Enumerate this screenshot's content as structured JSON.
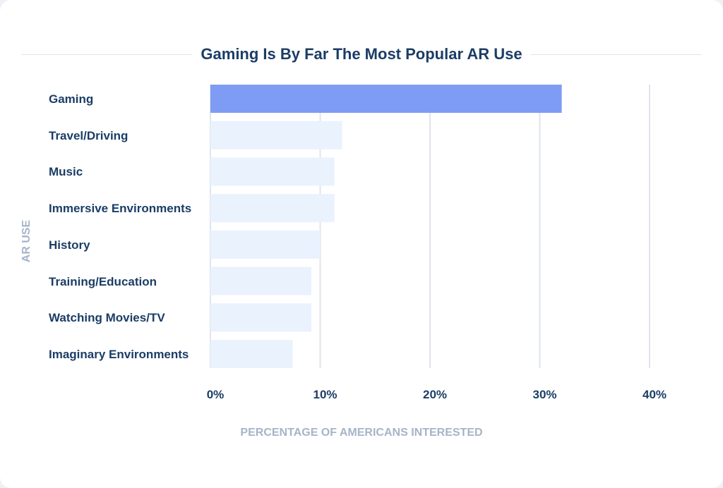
{
  "chart_data": {
    "type": "bar",
    "orientation": "horizontal",
    "title": "Gaming Is By Far The Most Popular AR Use",
    "xlabel": "PERCENTAGE OF AMERICANS INTERESTED",
    "ylabel": "AR USE",
    "categories": [
      "Gaming",
      "Travel/Driving",
      "Music",
      "Immersive Environments",
      "History",
      "Training/Education",
      "Watching Movies/TV",
      "Imaginary Environments"
    ],
    "values": [
      32,
      12,
      11.3,
      11.3,
      10,
      9.2,
      9.2,
      7.5
    ],
    "xlim": [
      0,
      40
    ],
    "xticks": [
      "0%",
      "10%",
      "20%",
      "30%",
      "40%"
    ],
    "grid": "vertical",
    "colors": {
      "highlight": "#7f9cf5",
      "default": "#eaf2fe",
      "grid": "#dfe4ee"
    }
  }
}
